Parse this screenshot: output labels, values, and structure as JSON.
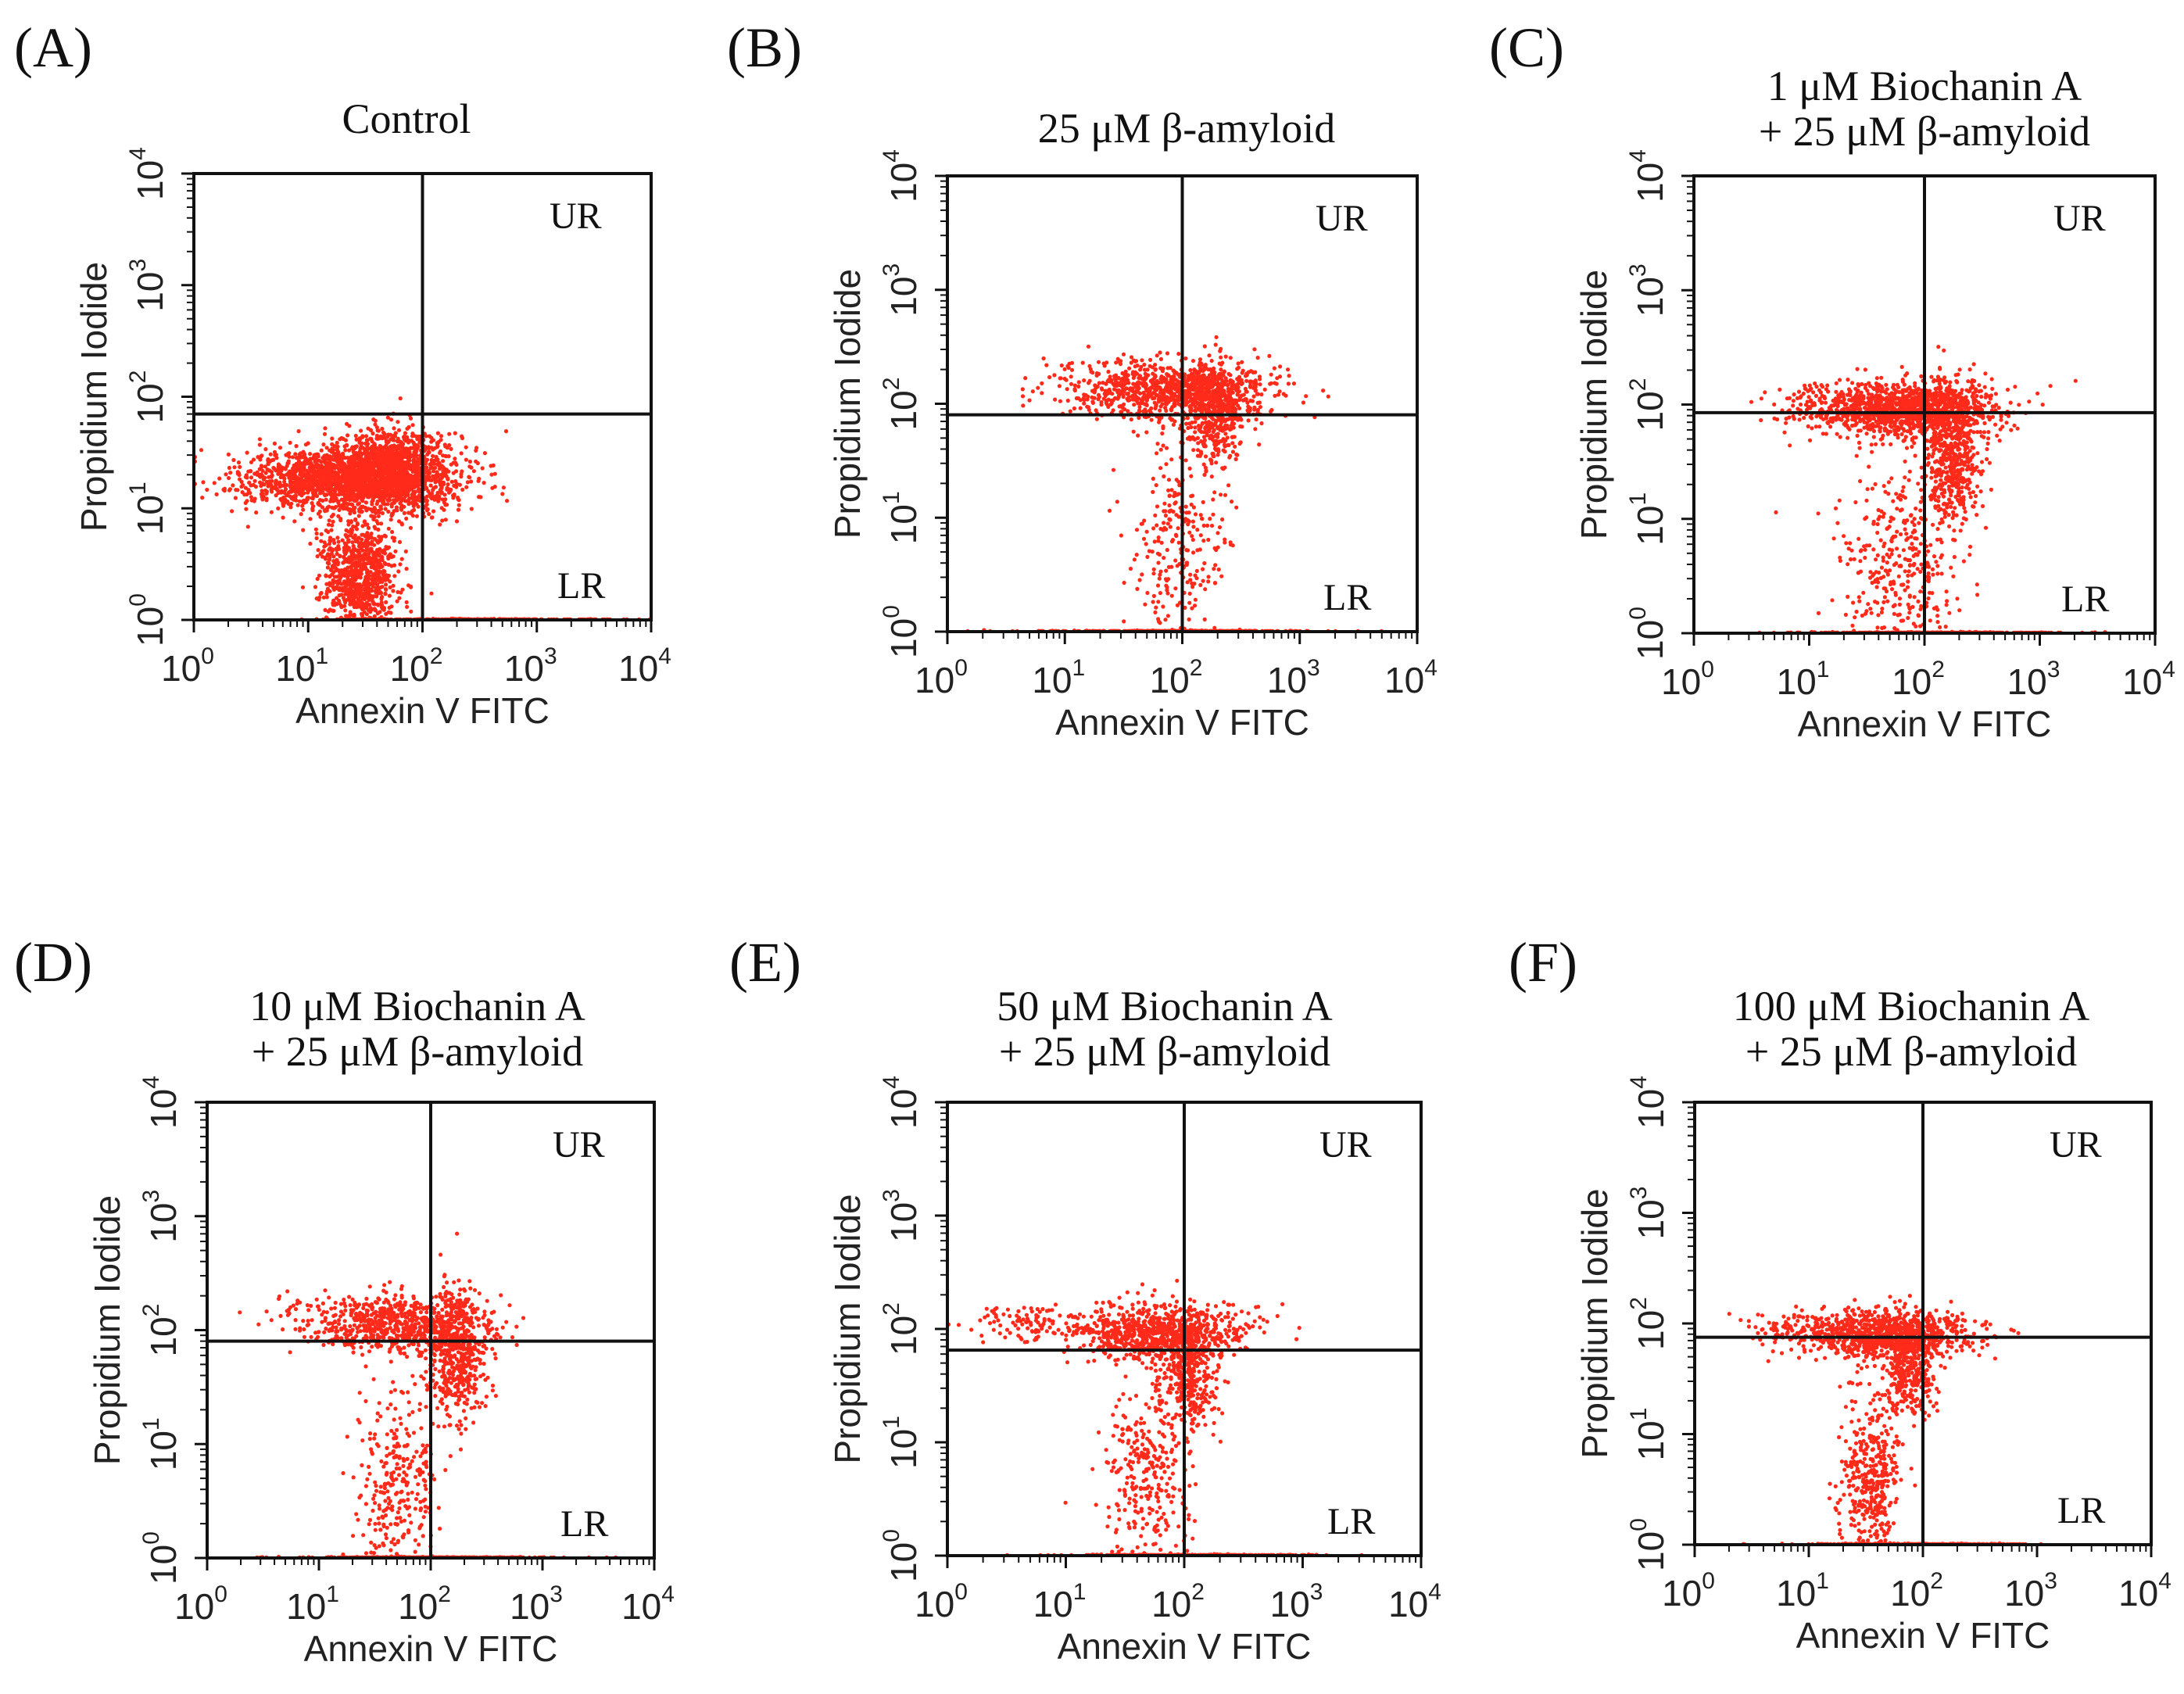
{
  "figure": {
    "background": "#ffffff",
    "dot_color": "#ff2a1a",
    "ink_color": "#111111"
  },
  "chart_data": [
    {
      "type": "scatter",
      "panel": "(A)",
      "title": "Control",
      "xlabel": "Annexin V FITC",
      "ylabel": "Propidium Iodide",
      "xscale": "log",
      "yscale": "log",
      "xlim": [
        1,
        10000
      ],
      "ylim": [
        1,
        10000
      ],
      "xticks": [
        [
          "10",
          "0"
        ],
        [
          "10",
          "1"
        ],
        [
          "10",
          "2"
        ],
        [
          "10",
          "3"
        ],
        [
          "10",
          "4"
        ]
      ],
      "yticks": [
        [
          "10",
          "0"
        ],
        [
          "10",
          "1"
        ],
        [
          "10",
          "2"
        ],
        [
          "10",
          "3"
        ],
        [
          "10",
          "4"
        ]
      ],
      "gate": {
        "x": 100,
        "y": 70
      },
      "quadrants": [
        "UR",
        "LR"
      ],
      "series": [
        {
          "name": "cells",
          "clusters": [
            {
              "x": 20,
              "y": 18,
              "sx": 0.42,
              "sy": 0.14,
              "n": 1700
            },
            {
              "x": 55,
              "y": 24,
              "sx": 0.22,
              "sy": 0.16,
              "n": 1000
            },
            {
              "x": 28,
              "y": 2.6,
              "sx": 0.16,
              "sy": 0.28,
              "n": 900
            },
            {
              "x": 160,
              "y": 18,
              "sx": 0.22,
              "sy": 0.18,
              "n": 90
            }
          ]
        },
        {
          "name": "axis-events",
          "clusters": [
            {
              "x": 400,
              "y": 1.0,
              "sx": 0.6,
              "sy": 0.005,
              "n": 220
            }
          ]
        }
      ]
    },
    {
      "type": "scatter",
      "panel": "(B)",
      "title": "25 μM β-amyloid",
      "xlabel": "Annexin V FITC",
      "ylabel": "Propidium Iodide",
      "xscale": "log",
      "yscale": "log",
      "xlim": [
        1,
        10000
      ],
      "ylim": [
        1,
        10000
      ],
      "xticks": [
        [
          "10",
          "0"
        ],
        [
          "10",
          "1"
        ],
        [
          "10",
          "2"
        ],
        [
          "10",
          "3"
        ],
        [
          "10",
          "4"
        ]
      ],
      "yticks": [
        [
          "10",
          "0"
        ],
        [
          "10",
          "1"
        ],
        [
          "10",
          "2"
        ],
        [
          "10",
          "3"
        ],
        [
          "10",
          "4"
        ]
      ],
      "gate": {
        "x": 100,
        "y": 80
      },
      "quadrants": [
        "UR",
        "LR"
      ],
      "series": [
        {
          "name": "cells",
          "clusters": [
            {
              "x": 90,
              "y": 130,
              "sx": 0.42,
              "sy": 0.13,
              "n": 900
            },
            {
              "x": 190,
              "y": 80,
              "sx": 0.13,
              "sy": 0.22,
              "n": 400
            },
            {
              "x": 90,
              "y": 6,
              "sx": 0.2,
              "sy": 0.45,
              "n": 250
            },
            {
              "x": 18,
              "y": 150,
              "sx": 0.3,
              "sy": 0.12,
              "n": 70
            }
          ]
        },
        {
          "name": "axis-events",
          "clusters": [
            {
              "x": 100,
              "y": 1.0,
              "sx": 0.55,
              "sy": 0.005,
              "n": 350
            }
          ]
        }
      ]
    },
    {
      "type": "scatter",
      "panel": "(C)",
      "title": "1 μM Biochanin A\n+ 25 μM β-amyloid",
      "xlabel": "Annexin V FITC",
      "ylabel": "Propidium Iodide",
      "xscale": "log",
      "yscale": "log",
      "xlim": [
        1,
        10000
      ],
      "ylim": [
        1,
        10000
      ],
      "xticks": [
        [
          "10",
          "0"
        ],
        [
          "10",
          "1"
        ],
        [
          "10",
          "2"
        ],
        [
          "10",
          "3"
        ],
        [
          "10",
          "4"
        ]
      ],
      "yticks": [
        [
          "10",
          "0"
        ],
        [
          "10",
          "1"
        ],
        [
          "10",
          "2"
        ],
        [
          "10",
          "3"
        ],
        [
          "10",
          "4"
        ]
      ],
      "gate": {
        "x": 100,
        "y": 85
      },
      "quadrants": [
        "UR",
        "LR"
      ],
      "series": [
        {
          "name": "cells",
          "clusters": [
            {
              "x": 70,
              "y": 90,
              "sx": 0.38,
              "sy": 0.12,
              "n": 1200
            },
            {
              "x": 170,
              "y": 35,
              "sx": 0.12,
              "sy": 0.3,
              "n": 500
            },
            {
              "x": 60,
              "y": 4,
              "sx": 0.25,
              "sy": 0.4,
              "n": 350
            },
            {
              "x": 15,
              "y": 100,
              "sx": 0.25,
              "sy": 0.1,
              "n": 100
            }
          ]
        },
        {
          "name": "axis-events",
          "clusters": [
            {
              "x": 100,
              "y": 1.0,
              "sx": 0.55,
              "sy": 0.005,
              "n": 300
            }
          ]
        }
      ]
    },
    {
      "type": "scatter",
      "panel": "(D)",
      "title": "10 μM Biochanin A\n+ 25 μM β-amyloid",
      "xlabel": "Annexin V FITC",
      "ylabel": "Propidium Iodide",
      "xscale": "log",
      "yscale": "log",
      "xlim": [
        1,
        10000
      ],
      "ylim": [
        1,
        10000
      ],
      "xticks": [
        [
          "10",
          "0"
        ],
        [
          "10",
          "1"
        ],
        [
          "10",
          "2"
        ],
        [
          "10",
          "3"
        ],
        [
          "10",
          "4"
        ]
      ],
      "yticks": [
        [
          "10",
          "0"
        ],
        [
          "10",
          "1"
        ],
        [
          "10",
          "2"
        ],
        [
          "10",
          "3"
        ],
        [
          "10",
          "4"
        ]
      ],
      "gate": {
        "x": 100,
        "y": 80
      },
      "quadrants": [
        "UR",
        "LR"
      ],
      "series": [
        {
          "name": "cells",
          "clusters": [
            {
              "x": 60,
              "y": 110,
              "sx": 0.4,
              "sy": 0.13,
              "n": 700
            },
            {
              "x": 170,
              "y": 60,
              "sx": 0.13,
              "sy": 0.28,
              "n": 450
            },
            {
              "x": 50,
              "y": 4,
              "sx": 0.18,
              "sy": 0.4,
              "n": 300
            },
            {
              "x": 12,
              "y": 130,
              "sx": 0.3,
              "sy": 0.1,
              "n": 80
            }
          ]
        },
        {
          "name": "axis-events",
          "clusters": [
            {
              "x": 100,
              "y": 1.0,
              "sx": 0.55,
              "sy": 0.005,
              "n": 320
            }
          ]
        }
      ]
    },
    {
      "type": "scatter",
      "panel": "(E)",
      "title": "50 μM Biochanin A\n+ 25 μM β-amyloid",
      "xlabel": "Annexin V FITC",
      "ylabel": "Propidium Iodide",
      "xscale": "log",
      "yscale": "log",
      "xlim": [
        1,
        10000
      ],
      "ylim": [
        1,
        10000
      ],
      "xticks": [
        [
          "10",
          "0"
        ],
        [
          "10",
          "1"
        ],
        [
          "10",
          "2"
        ],
        [
          "10",
          "3"
        ],
        [
          "10",
          "4"
        ]
      ],
      "yticks": [
        [
          "10",
          "0"
        ],
        [
          "10",
          "1"
        ],
        [
          "10",
          "2"
        ],
        [
          "10",
          "3"
        ],
        [
          "10",
          "4"
        ]
      ],
      "gate": {
        "x": 100,
        "y": 65
      },
      "quadrants": [
        "UR",
        "LR"
      ],
      "series": [
        {
          "name": "cells",
          "clusters": [
            {
              "x": 60,
              "y": 95,
              "sx": 0.38,
              "sy": 0.12,
              "n": 800
            },
            {
              "x": 110,
              "y": 40,
              "sx": 0.12,
              "sy": 0.25,
              "n": 350
            },
            {
              "x": 50,
              "y": 5,
              "sx": 0.18,
              "sy": 0.42,
              "n": 320
            },
            {
              "x": 5,
              "y": 110,
              "sx": 0.25,
              "sy": 0.08,
              "n": 90
            }
          ]
        },
        {
          "name": "axis-events",
          "clusters": [
            {
              "x": 120,
              "y": 1.0,
              "sx": 0.5,
              "sy": 0.005,
              "n": 300
            }
          ]
        }
      ]
    },
    {
      "type": "scatter",
      "panel": "(F)",
      "title": "100 μM Biochanin A\n+ 25 μM β-amyloid",
      "xlabel": "Annexin V FITC",
      "ylabel": "Propidium Iodide",
      "xscale": "log",
      "yscale": "log",
      "xlim": [
        1,
        10000
      ],
      "ylim": [
        1,
        10000
      ],
      "xticks": [
        [
          "10",
          "0"
        ],
        [
          "10",
          "1"
        ],
        [
          "10",
          "2"
        ],
        [
          "10",
          "3"
        ],
        [
          "10",
          "4"
        ]
      ],
      "yticks": [
        [
          "10",
          "0"
        ],
        [
          "10",
          "1"
        ],
        [
          "10",
          "2"
        ],
        [
          "10",
          "3"
        ],
        [
          "10",
          "4"
        ]
      ],
      "gate": {
        "x": 100,
        "y": 75
      },
      "quadrants": [
        "UR",
        "LR"
      ],
      "series": [
        {
          "name": "cells",
          "clusters": [
            {
              "x": 50,
              "y": 80,
              "sx": 0.38,
              "sy": 0.11,
              "n": 900
            },
            {
              "x": 75,
              "y": 40,
              "sx": 0.13,
              "sy": 0.22,
              "n": 350
            },
            {
              "x": 35,
              "y": 4,
              "sx": 0.13,
              "sy": 0.38,
              "n": 400
            },
            {
              "x": 8,
              "y": 90,
              "sx": 0.2,
              "sy": 0.07,
              "n": 80
            }
          ]
        },
        {
          "name": "axis-events",
          "clusters": [
            {
              "x": 80,
              "y": 1.0,
              "sx": 0.5,
              "sy": 0.005,
              "n": 300
            }
          ]
        }
      ]
    }
  ]
}
